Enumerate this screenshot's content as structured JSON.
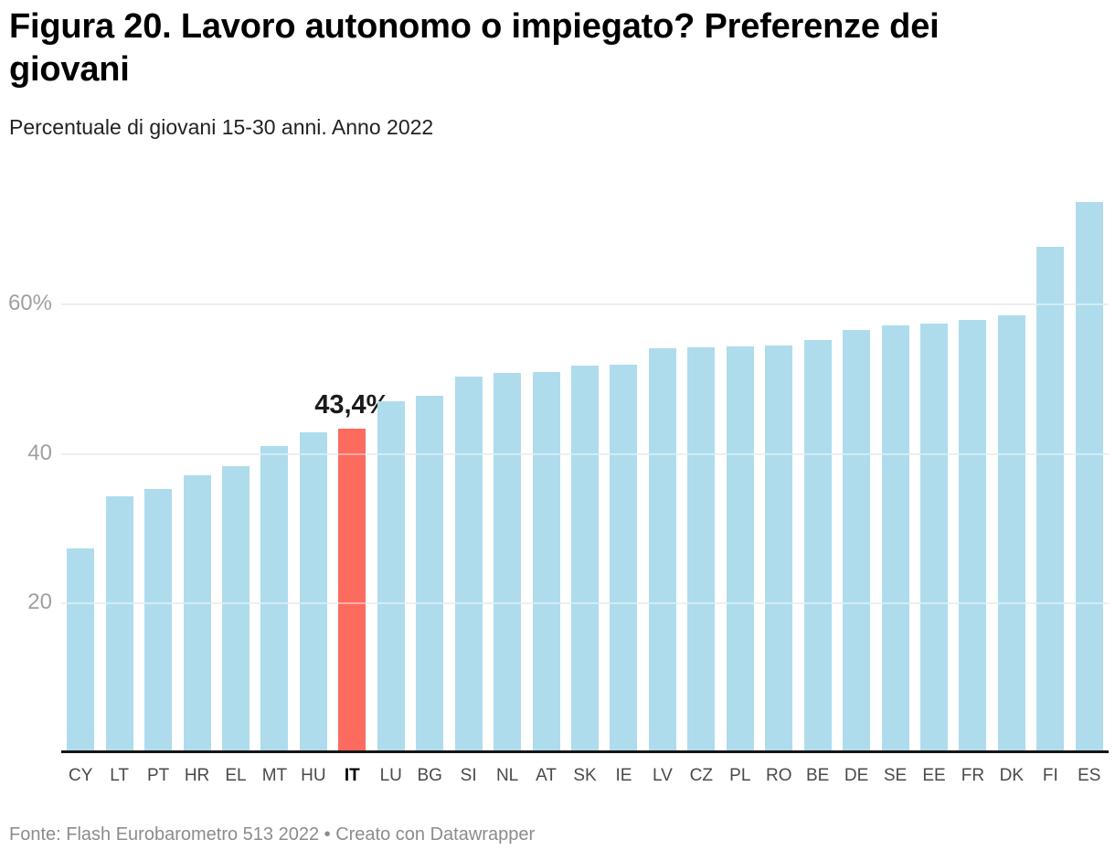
{
  "header": {
    "title": "Figura 20. Lavoro autonomo o impiegato? Preferenze dei giovani",
    "subtitle": "Percentuale di giovani 15-30 anni. Anno 2022"
  },
  "footer": {
    "source": "Fonte: Flash Eurobarometro 513 2022 • Creato con Datawrapper"
  },
  "colors": {
    "bar_default": "#aedcec",
    "bar_highlight": "#fd6b5f",
    "grid_line": "#e2e2e2",
    "grid_overlay": "rgba(255,255,255,0.45)",
    "axis_line": "#161616",
    "y_tick_label": "#a0a0a0",
    "x_tick_label": "#4a4a4a",
    "x_tick_label_highlight": "#000000",
    "value_label": "#1a1a1a",
    "title": "#000000",
    "subtitle": "#222222",
    "footer_text": "#8c8c8c",
    "background": "#ffffff"
  },
  "chart_data": {
    "type": "bar",
    "title": "Figura 20. Lavoro autonomo o impiegato? Preferenze dei giovani",
    "subtitle": "Percentuale di giovani 15-30 anni. Anno 2022",
    "unit": "%",
    "categories": [
      "CY",
      "LT",
      "PT",
      "HR",
      "EL",
      "MT",
      "HU",
      "IT",
      "LU",
      "BG",
      "SI",
      "NL",
      "AT",
      "SK",
      "IE",
      "LV",
      "CZ",
      "PL",
      "RO",
      "BE",
      "DE",
      "SE",
      "EE",
      "FR",
      "DK",
      "FI",
      "ES"
    ],
    "values": [
      27.3,
      34.3,
      35.3,
      37.1,
      38.3,
      41.0,
      42.9,
      43.4,
      47.0,
      47.8,
      50.3,
      50.8,
      51.0,
      51.8,
      52.0,
      54.2,
      54.3,
      54.4,
      54.5,
      55.2,
      56.6,
      57.2,
      57.5,
      58.0,
      58.5,
      67.8,
      73.7
    ],
    "highlight_category": "IT",
    "highlight_value_label": "43,4%",
    "y_ticks": [
      {
        "value": 20,
        "label": "20"
      },
      {
        "value": 40,
        "label": "40"
      },
      {
        "value": 60,
        "label": "60%"
      }
    ],
    "ylim": [
      0,
      80
    ],
    "grid": "horizontal",
    "legend": "none",
    "xlabel": "",
    "ylabel": ""
  }
}
